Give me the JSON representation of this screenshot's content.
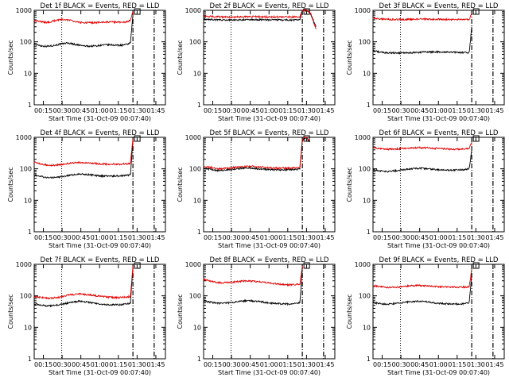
{
  "page": {
    "colors": {
      "events": "#000000",
      "lld": "#e00000",
      "axes": "#000000",
      "background": "#ffffff"
    }
  },
  "chart_data": [
    {
      "type": "line",
      "title": "Det 1f BLACK = Events, RED = LLD",
      "xlabel": "Start Time (31-Oct-09 00:07:40)",
      "ylabel": "Counts/sec",
      "x_ticks": [
        "00:15",
        "00:30",
        "00:45",
        "01:00",
        "01:15",
        "01:30",
        "01:45"
      ],
      "y_ticks": [
        "1",
        "10",
        "100",
        "1000"
      ],
      "ylim": [
        1,
        1000
      ],
      "yscale": "log",
      "xlim_minutes": [
        0,
        105
      ],
      "vlines": {
        "dotted": 22,
        "dashed": [
          79,
          96
        ]
      },
      "series": [
        {
          "name": "Events",
          "x": [
            0,
            3,
            6,
            10,
            14,
            18,
            22,
            26,
            30,
            34,
            38,
            42,
            46,
            50,
            54,
            58,
            62,
            66,
            70,
            74,
            77,
            79
          ],
          "values": [
            80,
            80,
            74,
            72,
            75,
            80,
            86,
            92,
            88,
            80,
            76,
            73,
            73,
            75,
            78,
            80,
            80,
            78,
            78,
            82,
            92,
            700
          ]
        },
        {
          "name": "LLD",
          "x": [
            0,
            3,
            6,
            10,
            14,
            18,
            22,
            26,
            30,
            34,
            38,
            42,
            46,
            50,
            54,
            58,
            62,
            66,
            70,
            74,
            77,
            79
          ],
          "values": [
            470,
            460,
            430,
            410,
            440,
            490,
            520,
            500,
            470,
            430,
            410,
            405,
            405,
            410,
            420,
            425,
            425,
            420,
            420,
            430,
            480,
            900
          ]
        }
      ]
    },
    {
      "type": "line",
      "title": "Det 2f BLACK = Events, RED = LLD",
      "xlabel": "Start Time (31-Oct-09 00:07:40)",
      "ylabel": "Counts/sec",
      "x_ticks": [
        "00:15",
        "00:30",
        "00:45",
        "01:00",
        "01:15",
        "01:30",
        "01:45"
      ],
      "y_ticks": [
        "1",
        "10",
        "100",
        "1000"
      ],
      "ylim": [
        1,
        1000
      ],
      "yscale": "log",
      "xlim_minutes": [
        0,
        105
      ],
      "vlines": {
        "dotted": 22,
        "dashed": [
          79,
          96
        ]
      },
      "series": [
        {
          "name": "Events",
          "x": [
            0,
            10,
            20,
            30,
            40,
            50,
            60,
            70,
            77,
            79,
            82,
            85,
            90
          ],
          "values": [
            520,
            500,
            490,
            500,
            505,
            500,
            495,
            495,
            490,
            1000,
            1000,
            900,
            300
          ]
        },
        {
          "name": "LLD",
          "x": [
            0,
            10,
            20,
            30,
            40,
            50,
            60,
            70,
            77,
            79,
            82,
            85,
            90
          ],
          "values": [
            650,
            630,
            610,
            620,
            630,
            620,
            615,
            620,
            610,
            1000,
            1000,
            900,
            250
          ]
        }
      ]
    },
    {
      "type": "line",
      "title": "Det 3f BLACK = Events, RED = LLD",
      "xlabel": "Start Time (31-Oct-09 00:07:40)",
      "ylabel": "Counts/sec",
      "x_ticks": [
        "00:15",
        "00:30",
        "00:45",
        "01:00",
        "01:15",
        "01:30",
        "01:45"
      ],
      "y_ticks": [
        "1",
        "10",
        "100",
        "1000"
      ],
      "ylim": [
        1,
        1000
      ],
      "yscale": "log",
      "xlim_minutes": [
        0,
        105
      ],
      "vlines": {
        "dotted": 22,
        "dashed": [
          79,
          96
        ]
      },
      "series": [
        {
          "name": "Events",
          "x": [
            0,
            5,
            10,
            20,
            30,
            40,
            50,
            60,
            70,
            77,
            79
          ],
          "values": [
            52,
            48,
            45,
            44,
            45,
            47,
            48,
            47,
            46,
            45,
            300
          ]
        },
        {
          "name": "LLD",
          "x": [
            0,
            5,
            10,
            20,
            30,
            40,
            50,
            60,
            70,
            77,
            79
          ],
          "values": [
            560,
            540,
            520,
            510,
            520,
            525,
            520,
            515,
            510,
            505,
            800
          ]
        }
      ]
    },
    {
      "type": "line",
      "title": "Det 4f BLACK = Events, RED = LLD",
      "xlabel": "Start Time (31-Oct-09 00:07:40)",
      "ylabel": "Counts/sec",
      "x_ticks": [
        "00:15",
        "00:30",
        "00:45",
        "01:00",
        "01:15",
        "01:30",
        "01:45"
      ],
      "y_ticks": [
        "1",
        "10",
        "100",
        "1000"
      ],
      "ylim": [
        1,
        1000
      ],
      "yscale": "log",
      "xlim_minutes": [
        0,
        105
      ],
      "vlines": {
        "dotted": 22,
        "dashed": [
          79,
          96
        ]
      },
      "series": [
        {
          "name": "Events",
          "x": [
            0,
            6,
            12,
            20,
            28,
            36,
            44,
            52,
            60,
            68,
            74,
            77,
            79
          ],
          "values": [
            62,
            56,
            52,
            55,
            62,
            68,
            65,
            60,
            58,
            60,
            62,
            65,
            800
          ]
        },
        {
          "name": "LLD",
          "x": [
            0,
            6,
            12,
            20,
            28,
            36,
            44,
            52,
            60,
            68,
            74,
            77,
            79
          ],
          "values": [
            160,
            140,
            130,
            135,
            150,
            160,
            155,
            145,
            140,
            140,
            145,
            150,
            900
          ]
        }
      ]
    },
    {
      "type": "line",
      "title": "Det 5f BLACK = Events, RED = LLD",
      "xlabel": "Start Time (31-Oct-09 00:07:40)",
      "ylabel": "Counts/sec",
      "x_ticks": [
        "00:15",
        "00:30",
        "00:45",
        "01:00",
        "01:15",
        "01:30",
        "01:45"
      ],
      "y_ticks": [
        "1",
        "10",
        "100",
        "1000"
      ],
      "ylim": [
        1,
        1000
      ],
      "yscale": "log",
      "xlim_minutes": [
        0,
        105
      ],
      "vlines": {
        "dotted": 22,
        "dashed": [
          79,
          96
        ]
      },
      "series": [
        {
          "name": "Events",
          "x": [
            0,
            6,
            12,
            20,
            28,
            36,
            44,
            52,
            60,
            68,
            74,
            77,
            79,
            82,
            85
          ],
          "values": [
            105,
            95,
            88,
            92,
            102,
            108,
            100,
            95,
            92,
            94,
            96,
            98,
            800,
            1000,
            700
          ]
        },
        {
          "name": "LLD",
          "x": [
            0,
            6,
            12,
            20,
            28,
            36,
            44,
            52,
            60,
            68,
            74,
            77,
            79,
            82,
            85
          ],
          "values": [
            120,
            110,
            100,
            105,
            115,
            122,
            115,
            108,
            105,
            106,
            108,
            110,
            900,
            1000,
            800
          ]
        }
      ]
    },
    {
      "type": "line",
      "title": "Det 6f BLACK = Events, RED = LLD",
      "xlabel": "Start Time (31-Oct-09 00:07:40)",
      "ylabel": "Counts/sec",
      "x_ticks": [
        "00:15",
        "00:30",
        "00:45",
        "01:00",
        "01:15",
        "01:30",
        "01:45"
      ],
      "y_ticks": [
        "1",
        "10",
        "100",
        "1000"
      ],
      "ylim": [
        1,
        1000
      ],
      "yscale": "log",
      "xlim_minutes": [
        0,
        105
      ],
      "vlines": {
        "dotted": 22,
        "dashed": [
          79,
          96
        ]
      },
      "series": [
        {
          "name": "Events",
          "x": [
            0,
            6,
            12,
            20,
            28,
            36,
            44,
            52,
            60,
            68,
            74,
            77,
            79
          ],
          "values": [
            95,
            85,
            82,
            88,
            98,
            105,
            100,
            94,
            90,
            92,
            95,
            100,
            400
          ]
        },
        {
          "name": "LLD",
          "x": [
            0,
            6,
            12,
            20,
            28,
            36,
            44,
            52,
            60,
            68,
            74,
            77,
            79
          ],
          "values": [
            470,
            440,
            420,
            430,
            450,
            470,
            460,
            440,
            425,
            420,
            430,
            440,
            700
          ]
        }
      ]
    },
    {
      "type": "line",
      "title": "Det 7f BLACK = Events, RED = LLD",
      "xlabel": "Start Time (31-Oct-09 00:07:40)",
      "ylabel": "Counts/sec",
      "x_ticks": [
        "00:15",
        "00:30",
        "00:45",
        "01:00",
        "01:15",
        "01:30",
        "01:45"
      ],
      "y_ticks": [
        "1",
        "10",
        "100",
        "1000"
      ],
      "ylim": [
        1,
        1000
      ],
      "yscale": "log",
      "xlim_minutes": [
        0,
        105
      ],
      "vlines": {
        "dotted": 22,
        "dashed": [
          79,
          96
        ]
      },
      "series": [
        {
          "name": "Events",
          "x": [
            0,
            6,
            12,
            20,
            28,
            36,
            44,
            52,
            60,
            68,
            74,
            77,
            79
          ],
          "values": [
            55,
            50,
            48,
            52,
            60,
            68,
            62,
            56,
            52,
            52,
            55,
            58,
            800
          ]
        },
        {
          "name": "LLD",
          "x": [
            0,
            6,
            12,
            20,
            28,
            36,
            44,
            52,
            60,
            68,
            74,
            77,
            79
          ],
          "values": [
            95,
            88,
            82,
            90,
            105,
            115,
            108,
            98,
            90,
            88,
            92,
            95,
            900
          ]
        }
      ]
    },
    {
      "type": "line",
      "title": "Det 8f BLACK = Events, RED = LLD",
      "xlabel": "Start Time (31-Oct-09 00:07:40)",
      "ylabel": "Counts/sec",
      "x_ticks": [
        "00:15",
        "00:30",
        "00:45",
        "01:00",
        "01:15",
        "01:30",
        "01:45"
      ],
      "y_ticks": [
        "1",
        "10",
        "100",
        "1000"
      ],
      "ylim": [
        1,
        1000
      ],
      "yscale": "log",
      "xlim_minutes": [
        0,
        105
      ],
      "vlines": {
        "dotted": 22,
        "dashed": [
          79,
          96
        ]
      },
      "series": [
        {
          "name": "Events",
          "x": [
            0,
            6,
            12,
            20,
            28,
            36,
            44,
            52,
            60,
            68,
            74,
            77,
            79
          ],
          "values": [
            70,
            62,
            58,
            60,
            66,
            70,
            66,
            60,
            56,
            55,
            58,
            60,
            700
          ]
        },
        {
          "name": "LLD",
          "x": [
            0,
            6,
            12,
            20,
            28,
            36,
            44,
            52,
            60,
            68,
            74,
            77,
            79
          ],
          "values": [
            330,
            290,
            260,
            265,
            285,
            300,
            280,
            255,
            235,
            225,
            230,
            235,
            900
          ]
        }
      ]
    },
    {
      "type": "line",
      "title": "Det 9f BLACK = Events, RED = LLD",
      "xlabel": "Start Time (31-Oct-09 00:07:40)",
      "ylabel": "Counts/sec",
      "x_ticks": [
        "00:15",
        "00:30",
        "00:45",
        "01:00",
        "01:15",
        "01:30",
        "01:45"
      ],
      "y_ticks": [
        "1",
        "10",
        "100",
        "1000"
      ],
      "ylim": [
        1,
        1000
      ],
      "yscale": "log",
      "xlim_minutes": [
        0,
        105
      ],
      "vlines": {
        "dotted": 22,
        "dashed": [
          79,
          96
        ]
      },
      "series": [
        {
          "name": "Events",
          "x": [
            0,
            6,
            12,
            20,
            28,
            36,
            44,
            52,
            60,
            68,
            74,
            77,
            79
          ],
          "values": [
            62,
            56,
            54,
            58,
            64,
            68,
            64,
            58,
            55,
            55,
            57,
            60,
            500
          ]
        },
        {
          "name": "LLD",
          "x": [
            0,
            6,
            12,
            20,
            28,
            36,
            44,
            52,
            60,
            68,
            74,
            77,
            79
          ],
          "values": [
            210,
            195,
            185,
            190,
            205,
            215,
            205,
            195,
            190,
            188,
            190,
            195,
            700
          ]
        }
      ]
    }
  ]
}
